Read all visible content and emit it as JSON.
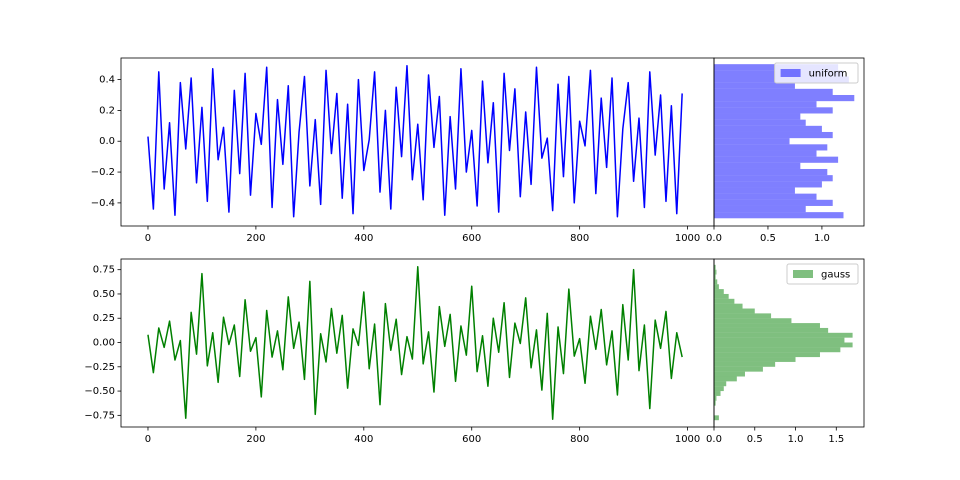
{
  "chart_data": [
    {
      "type": "line",
      "color": "#0000ff",
      "x": [
        0,
        10,
        20,
        30,
        40,
        50,
        60,
        70,
        80,
        90,
        100,
        110,
        120,
        130,
        140,
        150,
        160,
        170,
        180,
        190,
        200,
        210,
        220,
        230,
        240,
        250,
        260,
        270,
        280,
        290,
        300,
        310,
        320,
        330,
        340,
        350,
        360,
        370,
        380,
        390,
        400,
        410,
        420,
        430,
        440,
        450,
        460,
        470,
        480,
        490,
        500,
        510,
        520,
        530,
        540,
        550,
        560,
        570,
        580,
        590,
        600,
        610,
        620,
        630,
        640,
        650,
        660,
        670,
        680,
        690,
        700,
        710,
        720,
        730,
        740,
        750,
        760,
        770,
        780,
        790,
        800,
        810,
        820,
        830,
        840,
        850,
        860,
        870,
        880,
        890,
        900,
        910,
        920,
        930,
        940,
        950,
        960,
        970,
        980,
        990
      ],
      "values": [
        0.03,
        -0.44,
        0.45,
        -0.31,
        0.12,
        -0.48,
        0.38,
        -0.05,
        0.41,
        -0.27,
        0.22,
        -0.39,
        0.47,
        -0.12,
        0.09,
        -0.46,
        0.33,
        -0.21,
        0.44,
        -0.35,
        0.18,
        -0.02,
        0.48,
        -0.43,
        0.27,
        -0.15,
        0.36,
        -0.49,
        0.06,
        0.42,
        -0.29,
        0.14,
        -0.41,
        0.46,
        -0.08,
        0.31,
        -0.37,
        0.24,
        -0.47,
        0.4,
        -0.19,
        0.01,
        0.45,
        -0.33,
        0.2,
        -0.44,
        0.35,
        -0.1,
        0.49,
        -0.25,
        0.11,
        -0.38,
        0.43,
        -0.04,
        0.29,
        -0.48,
        0.16,
        -0.31,
        0.47,
        -0.2,
        0.07,
        -0.42,
        0.39,
        -0.14,
        0.25,
        -0.46,
        0.44,
        -0.06,
        0.34,
        -0.36,
        0.19,
        -0.28,
        0.48,
        -0.11,
        0.02,
        -0.45,
        0.37,
        -0.23,
        0.42,
        -0.4,
        0.13,
        -0.03,
        0.46,
        -0.34,
        0.28,
        -0.17,
        0.41,
        -0.49,
        0.08,
        0.38,
        -0.26,
        0.15,
        -0.43,
        0.45,
        -0.09,
        0.3,
        -0.39,
        0.23,
        -0.47,
        0.31
      ],
      "xlim": [
        -50,
        1049
      ],
      "ylim": [
        -0.55,
        0.54
      ],
      "xticks": [
        0,
        200,
        400,
        600,
        800,
        1000
      ],
      "yticks": [
        {
          "value": -0.4,
          "label": "−0.4"
        },
        {
          "value": -0.2,
          "label": "−0.2"
        },
        {
          "value": 0,
          "label": "0.0"
        },
        0.2,
        0.4
      ]
    },
    {
      "type": "histogram",
      "orientation": "horizontal",
      "name": "uniform",
      "color": "#0000ff",
      "alpha": 0.5,
      "legend": "upper right",
      "bins": [
        -0.5,
        -0.46,
        -0.42,
        -0.38,
        -0.34,
        -0.3,
        -0.26,
        -0.22,
        -0.18,
        -0.14,
        -0.1,
        -0.06,
        -0.02,
        0.02,
        0.06,
        0.1,
        0.14,
        0.18,
        0.22,
        0.26,
        0.3,
        0.34,
        0.38,
        0.42,
        0.46,
        0.5
      ],
      "values": [
        1.2,
        0.85,
        1.1,
        0.95,
        0.75,
        1.0,
        1.1,
        1.05,
        0.8,
        1.15,
        0.95,
        1.05,
        0.7,
        1.1,
        1.0,
        0.85,
        0.8,
        1.1,
        0.95,
        1.3,
        1.1,
        0.75,
        1.25,
        1.2,
        1.15
      ],
      "xlim": [
        0,
        1.39
      ],
      "ylim": [
        -0.55,
        0.54
      ],
      "xticks": [
        {
          "value": 0,
          "label": "0.0"
        },
        0.5,
        {
          "value": 1,
          "label": "1.0"
        }
      ]
    },
    {
      "type": "line",
      "color": "#008000",
      "x": [
        0,
        10,
        20,
        30,
        40,
        50,
        60,
        70,
        80,
        90,
        100,
        110,
        120,
        130,
        140,
        150,
        160,
        170,
        180,
        190,
        200,
        210,
        220,
        230,
        240,
        250,
        260,
        270,
        280,
        290,
        300,
        310,
        320,
        330,
        340,
        350,
        360,
        370,
        380,
        390,
        400,
        410,
        420,
        430,
        440,
        450,
        460,
        470,
        480,
        490,
        500,
        510,
        520,
        530,
        540,
        550,
        560,
        570,
        580,
        590,
        600,
        610,
        620,
        630,
        640,
        650,
        660,
        670,
        680,
        690,
        700,
        710,
        720,
        730,
        740,
        750,
        760,
        770,
        780,
        790,
        800,
        810,
        820,
        830,
        840,
        850,
        860,
        870,
        880,
        890,
        900,
        910,
        920,
        930,
        940,
        950,
        960,
        970,
        980,
        990
      ],
      "values": [
        0.08,
        -0.31,
        0.15,
        -0.05,
        0.22,
        -0.18,
        0.02,
        -0.78,
        0.31,
        -0.12,
        0.71,
        -0.24,
        0.1,
        -0.41,
        0.26,
        -0.02,
        0.18,
        -0.35,
        0.44,
        -0.09,
        0.05,
        -0.56,
        0.33,
        -0.15,
        0.12,
        -0.28,
        0.47,
        -0.06,
        0.21,
        -0.38,
        0.63,
        -0.74,
        0.09,
        -0.2,
        0.35,
        -0.11,
        0.28,
        -0.47,
        0.14,
        -0.03,
        0.52,
        -0.27,
        0.19,
        -0.64,
        0.4,
        -0.08,
        0.24,
        -0.33,
        0.06,
        -0.17,
        0.78,
        -0.22,
        0.11,
        -0.51,
        0.37,
        -0.04,
        0.29,
        -0.4,
        0.17,
        -0.13,
        0.58,
        -0.3,
        0.07,
        -0.45,
        0.25,
        -0.1,
        0.41,
        -0.36,
        0.2,
        -0.01,
        0.46,
        -0.26,
        0.13,
        -0.49,
        0.3,
        -0.79,
        0.16,
        -0.32,
        0.55,
        -0.14,
        0.04,
        -0.42,
        0.27,
        -0.07,
        0.34,
        -0.23,
        0.12,
        -0.54,
        0.39,
        -0.18,
        0.75,
        -0.29,
        0.18,
        -0.68,
        0.23,
        -0.06,
        0.32,
        -0.37,
        0.1,
        -0.15
      ],
      "xlim": [
        -50,
        1049
      ],
      "ylim": [
        -0.87,
        0.86
      ],
      "xticks": [
        0,
        200,
        400,
        600,
        800,
        1000
      ],
      "yticks": [
        {
          "value": -0.75,
          "label": "−0.75"
        },
        {
          "value": -0.5,
          "label": "−0.50"
        },
        {
          "value": -0.25,
          "label": "−0.25"
        },
        {
          "value": 0,
          "label": "0.00"
        },
        0.25,
        {
          "value": 0.5,
          "label": "0.50"
        },
        0.75
      ]
    },
    {
      "type": "histogram",
      "orientation": "horizontal",
      "name": "gauss",
      "color": "#008000",
      "alpha": 0.5,
      "legend": "upper right",
      "bins": [
        -0.8,
        -0.75,
        -0.7,
        -0.65,
        -0.6,
        -0.55,
        -0.5,
        -0.45,
        -0.4,
        -0.35,
        -0.3,
        -0.25,
        -0.2,
        -0.15,
        -0.1,
        -0.05,
        0,
        0.05,
        0.1,
        0.15,
        0.2,
        0.25,
        0.3,
        0.35,
        0.4,
        0.45,
        0.5,
        0.55,
        0.6,
        0.65,
        0.7,
        0.75,
        0.8
      ],
      "values": [
        0.06,
        0,
        0,
        0.02,
        0.03,
        0.08,
        0.12,
        0.15,
        0.28,
        0.38,
        0.6,
        0.75,
        1.0,
        1.3,
        1.55,
        1.7,
        1.6,
        1.7,
        1.4,
        1.3,
        0.95,
        0.7,
        0.5,
        0.35,
        0.25,
        0.18,
        0.12,
        0.06,
        0.04,
        0.02,
        0.03,
        0.02
      ],
      "xlim": [
        0,
        1.84
      ],
      "ylim": [
        -0.87,
        0.86
      ],
      "xticks": [
        {
          "value": 0,
          "label": "0.0"
        },
        0.5,
        {
          "value": 1,
          "label": "1.0"
        },
        1.5
      ]
    }
  ]
}
